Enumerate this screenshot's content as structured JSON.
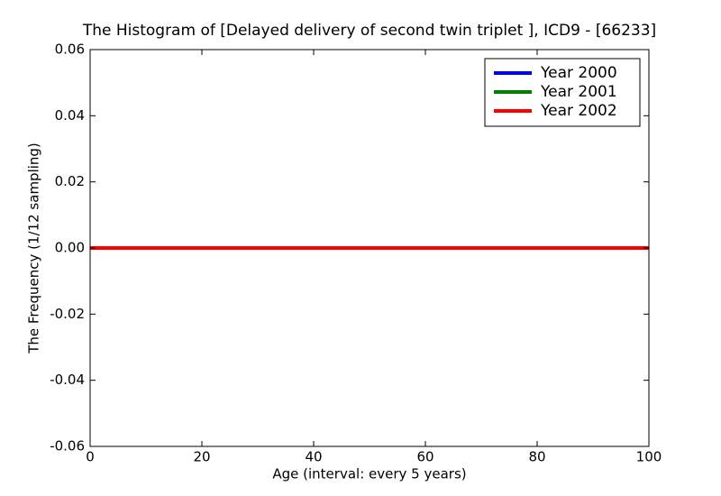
{
  "chart_data": {
    "type": "line",
    "title": "The Histogram of [Delayed delivery of second twin triplet ], ICD9 - [66233]",
    "xlabel": "Age (interval: every 5 years)",
    "ylabel": "The Frequency (1/12 sampling)",
    "x": [
      0,
      5,
      10,
      15,
      20,
      25,
      30,
      35,
      40,
      45,
      50,
      55,
      60,
      65,
      70,
      75,
      80,
      85,
      90,
      95,
      100
    ],
    "series": [
      {
        "name": "Year 2000",
        "color": "#0000ff",
        "values": [
          0,
          0,
          0,
          0,
          0,
          0,
          0,
          0,
          0,
          0,
          0,
          0,
          0,
          0,
          0,
          0,
          0,
          0,
          0,
          0,
          0
        ]
      },
      {
        "name": "Year 2001",
        "color": "#008000",
        "values": [
          0,
          0,
          0,
          0,
          0,
          0,
          0,
          0,
          0,
          0,
          0,
          0,
          0,
          0,
          0,
          0,
          0,
          0,
          0,
          0,
          0
        ]
      },
      {
        "name": "Year 2002",
        "color": "#ff0000",
        "values": [
          0,
          0,
          0,
          0,
          0,
          0,
          0,
          0,
          0,
          0,
          0,
          0,
          0,
          0,
          0,
          0,
          0,
          0,
          0,
          0,
          0
        ]
      }
    ],
    "xlim": [
      0,
      100
    ],
    "xticks": [
      0,
      20,
      40,
      60,
      80,
      100
    ],
    "ylim": [
      -0.06,
      0.06
    ],
    "yticks": [
      -0.06,
      -0.04,
      -0.02,
      {
        "value": 0,
        "label": "0.00"
      },
      0.02,
      0.04,
      0.06
    ],
    "legend": "upper right"
  }
}
